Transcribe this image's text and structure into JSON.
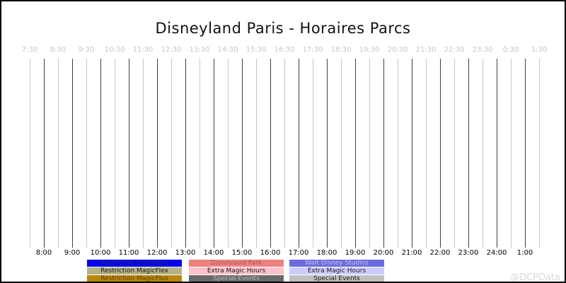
{
  "watermark": "@DCPData",
  "chart_data": {
    "type": "gantt",
    "title": "Disneyland Paris - Horaires Parcs",
    "subtitle": "",
    "series": [],
    "x_axis": {
      "range_hours": [
        7.5,
        25.5
      ],
      "grid": true,
      "top_ticks": [
        "7:30",
        "8:30",
        "9:30",
        "10:30",
        "11:30",
        "12:30",
        "13:30",
        "14:30",
        "15:30",
        "16:30",
        "17:30",
        "18:30",
        "19:30",
        "20:30",
        "21:30",
        "22:30",
        "23:30",
        "0:30",
        "1:30"
      ],
      "bottom_ticks": [
        "8:00",
        "9:00",
        "10:00",
        "11:00",
        "12:00",
        "13:00",
        "14:00",
        "15:00",
        "16:00",
        "17:00",
        "18:00",
        "19:00",
        "20:00",
        "21:00",
        "22:00",
        "23:00",
        "24:00",
        "1:00"
      ]
    },
    "legend_position": "bottom",
    "legend": {
      "columns": [
        {
          "items": [
            {
              "label": "Restriction Discovery",
              "bg": "#0000ee",
              "fg": "#333355"
            },
            {
              "label": "Restriction MagicFlex",
              "bg": "#b2b284",
              "fg": "#1a1a1a"
            },
            {
              "label": "Restriction MagicPlus",
              "bg": "#b8860b",
              "fg": "#5a4708"
            }
          ]
        },
        {
          "items": [
            {
              "label": "Disneyland Park",
              "bg": "#f08080",
              "fg": "#a85959"
            },
            {
              "label": "Extra Magic Hours",
              "bg": "#ffc0cb",
              "fg": "#1a1a1a"
            },
            {
              "label": "Special Events",
              "bg": "#696969",
              "fg": "#b8b8b8"
            }
          ]
        },
        {
          "items": [
            {
              "label": "Walt Disney Studios",
              "bg": "#6b6bdf",
              "fg": "#c3c3e6"
            },
            {
              "label": "Extra Magic Hours",
              "bg": "#ccccff",
              "fg": "#1a1a1a"
            },
            {
              "label": "Special Events",
              "bg": "#c0c0c0",
              "fg": "#1a1a1a"
            }
          ]
        }
      ]
    },
    "colors": {
      "background": "#ffffff",
      "border": "#000000",
      "grid_half_hour": "#c6c6c6",
      "grid_hour": "#3f3f3f",
      "top_tick_text": "#c6c6c6",
      "bottom_tick_text": "#000000",
      "title_text": "#111111",
      "watermark_text": "#d9d9d9"
    }
  }
}
